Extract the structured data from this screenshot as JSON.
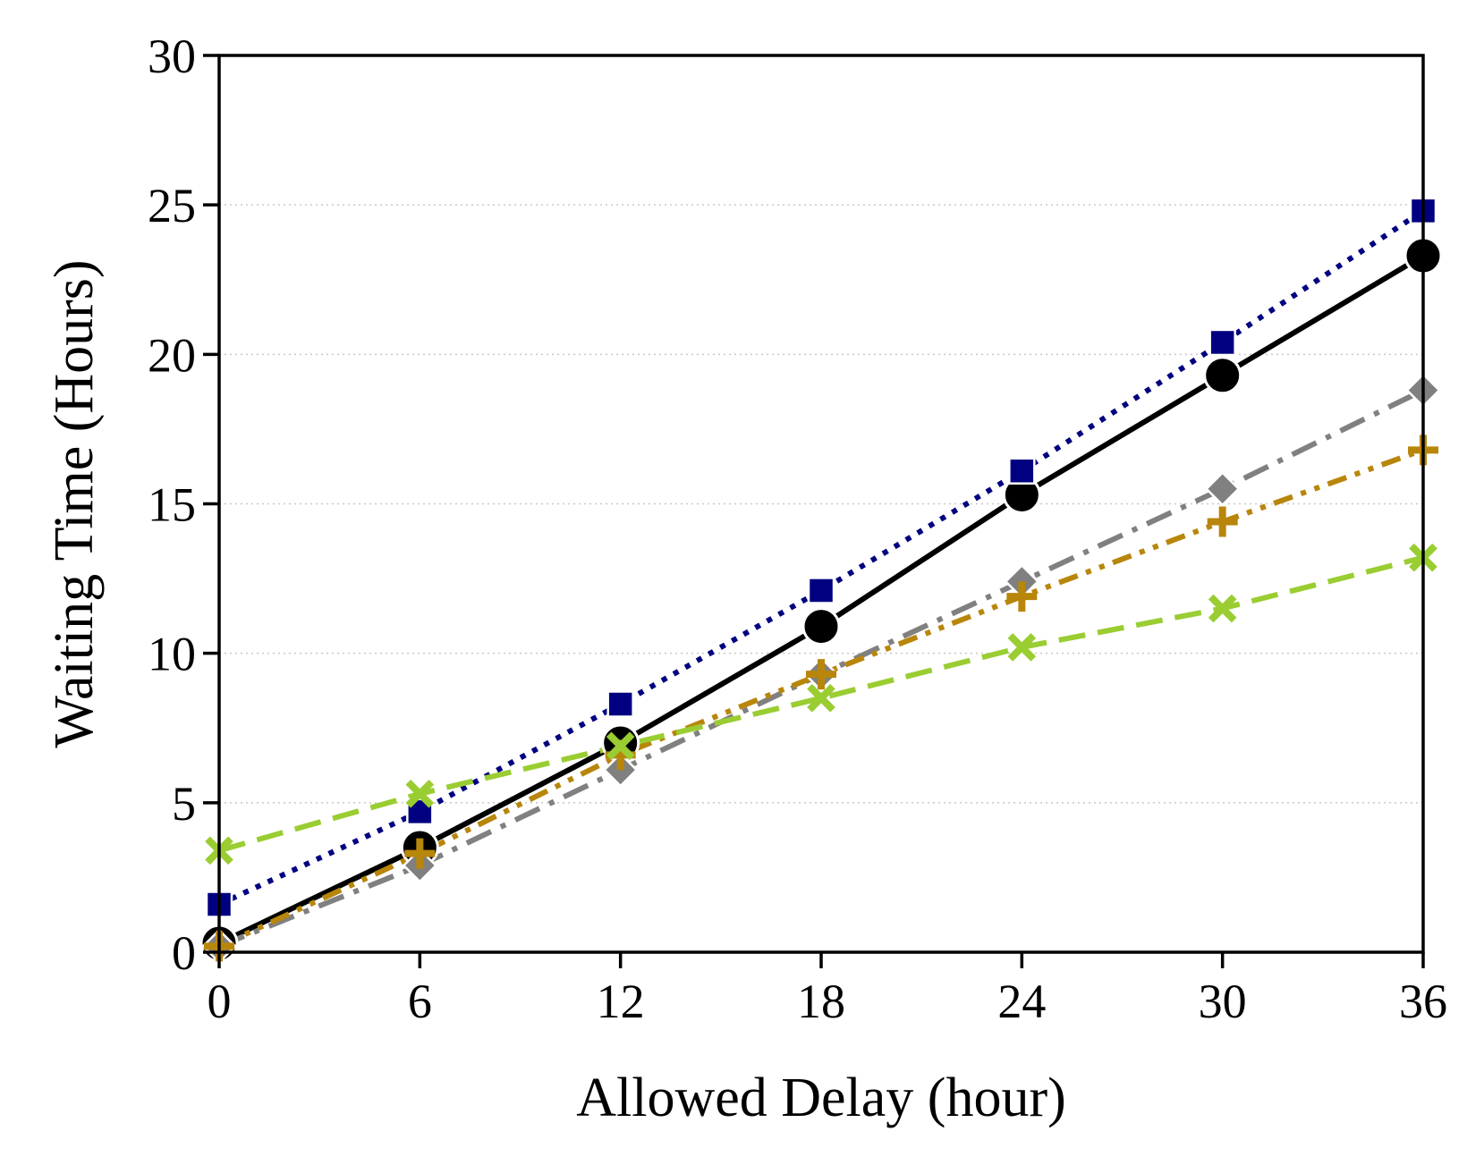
{
  "chart_data": {
    "type": "line",
    "title": "",
    "xlabel": "Allowed Delay (hour)",
    "ylabel": "Waiting Time (Hours)",
    "x": [
      0,
      6,
      12,
      18,
      24,
      30,
      36
    ],
    "x_ticks": [
      "0",
      "6",
      "12",
      "18",
      "24",
      "30",
      "36"
    ],
    "y_ticks": [
      "0",
      "5",
      "10",
      "15",
      "20",
      "25",
      "30"
    ],
    "xlim": [
      0,
      36
    ],
    "ylim": [
      0,
      30
    ],
    "grid": "horizontal dotted",
    "legend": "none",
    "series": [
      {
        "color": "#000000",
        "line_style": "solid",
        "marker": "circle",
        "values": [
          0.3,
          3.5,
          7.0,
          10.9,
          15.3,
          19.3,
          23.3
        ]
      },
      {
        "color": "#000080",
        "line_style": "dotted",
        "marker": "square",
        "values": [
          1.6,
          4.7,
          8.3,
          12.1,
          16.1,
          20.4,
          24.8
        ]
      },
      {
        "color": "#808080",
        "line_style": "dashdot",
        "marker": "diamond",
        "values": [
          0.2,
          2.9,
          6.1,
          9.3,
          12.4,
          15.5,
          18.8
        ]
      },
      {
        "color": "#b8860b",
        "line_style": "dashdotdot",
        "marker": "plus",
        "values": [
          0.2,
          3.3,
          6.6,
          9.3,
          11.9,
          14.4,
          16.8
        ]
      },
      {
        "color": "#9acd32",
        "line_style": "dashed",
        "marker": "x",
        "values": [
          3.4,
          5.3,
          6.9,
          8.5,
          10.2,
          11.5,
          13.2
        ]
      }
    ]
  }
}
